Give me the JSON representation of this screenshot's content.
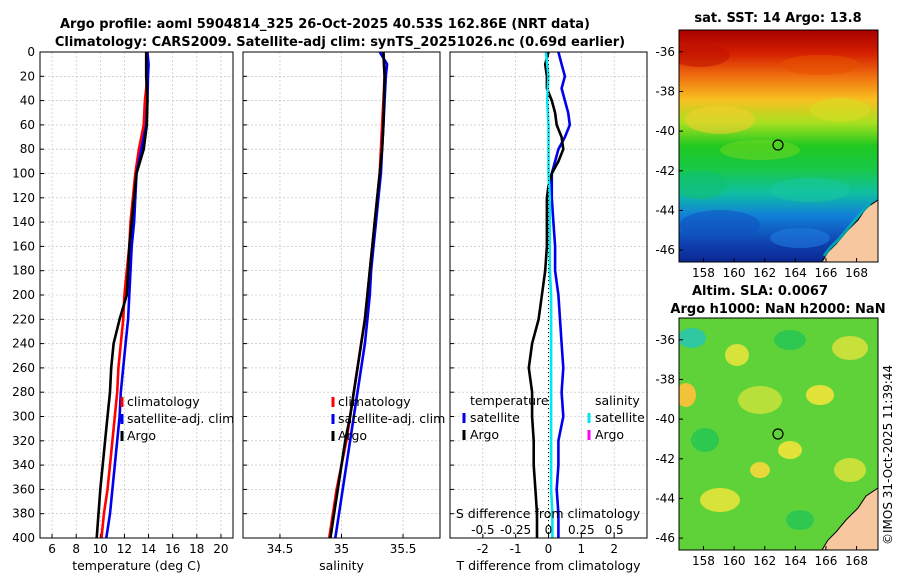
{
  "title": {
    "line1": "Argo profile: aoml 5904814_325 26-Oct-2025 40.53S 162.86E (NRT data)",
    "line2": "Climatology: CARS2009. Satellite-adj clim: synTS_20251026.nc (0.69d earlier)"
  },
  "watermark": "©IMOS 31-Oct-2025 11:39:44",
  "colors": {
    "climatology": "#ff0000",
    "satellite": "#0000ee",
    "argo": "#000000",
    "sal_satellite": "#00e5ee",
    "sal_argo": "#ff00ff",
    "land": "#f7c79f",
    "grid": "#bbbbbb"
  },
  "chart_data": [
    {
      "id": "temperature",
      "type": "line",
      "xlabel": "temperature (deg C)",
      "ylabel": "",
      "xlim": [
        5,
        21
      ],
      "ylim": [
        400,
        0
      ],
      "xticks": [
        6,
        8,
        10,
        12,
        14,
        16,
        18,
        20
      ],
      "yticks": [
        0,
        20,
        40,
        60,
        80,
        100,
        120,
        140,
        160,
        180,
        200,
        220,
        240,
        260,
        280,
        300,
        320,
        340,
        360,
        380,
        400
      ],
      "grid": true,
      "legend": {
        "placement": "lower-right",
        "entries": [
          "climatology",
          "satellite-adj. clim",
          "Argo"
        ]
      },
      "series": [
        {
          "name": "climatology",
          "color_key": "climatology",
          "points": [
            [
              13.9,
              0
            ],
            [
              13.9,
              10
            ],
            [
              13.9,
              20
            ],
            [
              13.8,
              30
            ],
            [
              13.7,
              40
            ],
            [
              13.6,
              60
            ],
            [
              13.2,
              80
            ],
            [
              12.9,
              100
            ],
            [
              12.7,
              120
            ],
            [
              12.5,
              140
            ],
            [
              12.4,
              160
            ],
            [
              12.2,
              180
            ],
            [
              12.0,
              200
            ],
            [
              11.9,
              220
            ],
            [
              11.7,
              240
            ],
            [
              11.5,
              260
            ],
            [
              11.4,
              280
            ],
            [
              11.2,
              300
            ],
            [
              11.0,
              320
            ],
            [
              10.8,
              340
            ],
            [
              10.6,
              360
            ],
            [
              10.3,
              380
            ],
            [
              10.1,
              400
            ]
          ]
        },
        {
          "name": "satellite-adj. clim",
          "color_key": "satellite",
          "points": [
            [
              13.9,
              0
            ],
            [
              14.0,
              10
            ],
            [
              13.95,
              20
            ],
            [
              13.9,
              40
            ],
            [
              13.8,
              60
            ],
            [
              13.4,
              80
            ],
            [
              13.0,
              100
            ],
            [
              12.9,
              120
            ],
            [
              12.8,
              140
            ],
            [
              12.6,
              160
            ],
            [
              12.5,
              180
            ],
            [
              12.4,
              200
            ],
            [
              12.3,
              220
            ],
            [
              12.1,
              240
            ],
            [
              11.9,
              260
            ],
            [
              11.7,
              280
            ],
            [
              11.6,
              300
            ],
            [
              11.4,
              320
            ],
            [
              11.2,
              340
            ],
            [
              11.0,
              360
            ],
            [
              10.8,
              380
            ],
            [
              10.5,
              400
            ]
          ]
        },
        {
          "name": "Argo",
          "color_key": "argo",
          "points": [
            [
              13.8,
              0
            ],
            [
              13.8,
              20
            ],
            [
              13.9,
              40
            ],
            [
              13.85,
              60
            ],
            [
              13.6,
              80
            ],
            [
              13.0,
              100
            ],
            [
              12.8,
              120
            ],
            [
              12.6,
              140
            ],
            [
              12.4,
              160
            ],
            [
              12.3,
              180
            ],
            [
              12.2,
              200
            ],
            [
              11.6,
              220
            ],
            [
              11.1,
              240
            ],
            [
              10.9,
              260
            ],
            [
              10.8,
              280
            ],
            [
              10.6,
              300
            ],
            [
              10.4,
              320
            ],
            [
              10.2,
              340
            ],
            [
              10.0,
              360
            ],
            [
              9.85,
              380
            ],
            [
              9.7,
              400
            ]
          ]
        }
      ]
    },
    {
      "id": "salinity",
      "type": "line",
      "xlabel": "salinity",
      "ylabel": "",
      "xlim": [
        34.2,
        35.8
      ],
      "ylim": [
        400,
        0
      ],
      "xticks": [
        34.5,
        35,
        35.5
      ],
      "xticklabels": [
        "34.5",
        "35",
        "35.5"
      ],
      "grid": true,
      "legend": {
        "placement": "lower-right",
        "entries": [
          "climatology",
          "satellite-adj. clim",
          "Argo"
        ]
      },
      "series": [
        {
          "name": "climatology",
          "color_key": "climatology",
          "points": [
            [
              35.34,
              0
            ],
            [
              35.35,
              20
            ],
            [
              35.34,
              40
            ],
            [
              35.33,
              60
            ],
            [
              35.32,
              80
            ],
            [
              35.31,
              100
            ],
            [
              35.29,
              120
            ],
            [
              35.27,
              140
            ],
            [
              35.25,
              160
            ],
            [
              35.23,
              180
            ],
            [
              35.21,
              200
            ],
            [
              35.19,
              220
            ],
            [
              35.16,
              240
            ],
            [
              35.13,
              260
            ],
            [
              35.1,
              280
            ],
            [
              35.07,
              300
            ],
            [
              35.04,
              320
            ],
            [
              35.0,
              340
            ],
            [
              34.96,
              360
            ],
            [
              34.93,
              380
            ],
            [
              34.9,
              400
            ]
          ]
        },
        {
          "name": "satellite-adj. clim",
          "color_key": "satellite",
          "points": [
            [
              35.31,
              0
            ],
            [
              35.37,
              10
            ],
            [
              35.36,
              20
            ],
            [
              35.35,
              40
            ],
            [
              35.34,
              60
            ],
            [
              35.33,
              80
            ],
            [
              35.32,
              100
            ],
            [
              35.3,
              120
            ],
            [
              35.28,
              140
            ],
            [
              35.26,
              160
            ],
            [
              35.24,
              180
            ],
            [
              35.23,
              200
            ],
            [
              35.21,
              220
            ],
            [
              35.19,
              240
            ],
            [
              35.16,
              260
            ],
            [
              35.13,
              280
            ],
            [
              35.1,
              300
            ],
            [
              35.07,
              320
            ],
            [
              35.04,
              340
            ],
            [
              35.01,
              360
            ],
            [
              34.98,
              380
            ],
            [
              34.95,
              400
            ]
          ]
        },
        {
          "name": "Argo",
          "color_key": "argo",
          "points": [
            [
              35.34,
              0
            ],
            [
              35.35,
              20
            ],
            [
              35.345,
              40
            ],
            [
              35.34,
              60
            ],
            [
              35.33,
              80
            ],
            [
              35.31,
              100
            ],
            [
              35.29,
              120
            ],
            [
              35.27,
              140
            ],
            [
              35.25,
              160
            ],
            [
              35.23,
              180
            ],
            [
              35.21,
              200
            ],
            [
              35.19,
              220
            ],
            [
              35.16,
              240
            ],
            [
              35.13,
              260
            ],
            [
              35.1,
              280
            ],
            [
              35.07,
              300
            ],
            [
              35.03,
              320
            ],
            [
              35.0,
              340
            ],
            [
              34.97,
              360
            ],
            [
              34.94,
              380
            ],
            [
              34.91,
              400
            ]
          ]
        }
      ]
    },
    {
      "id": "difference",
      "type": "line",
      "xlabel": "T difference from climatology",
      "top_axis_label": "S difference from climatology",
      "xlim": [
        -3,
        3
      ],
      "ylim": [
        400,
        0
      ],
      "xticks": [
        -2,
        -1,
        0,
        1,
        2
      ],
      "top_xlim": [
        -0.75,
        0.75
      ],
      "top_xticks": [
        -0.5,
        -0.25,
        0,
        0.25,
        0.5
      ],
      "top_xticklabels": [
        "-0.5",
        "-0.25",
        "0",
        "0.25",
        "0.5"
      ],
      "grid": true,
      "legend_temperature": {
        "title": "temperature",
        "placement": "lower-left",
        "entries": [
          "satellite",
          "Argo"
        ]
      },
      "legend_salinity": {
        "title": "salinity",
        "placement": "lower-right",
        "entries": [
          "satellite",
          "Argo"
        ]
      },
      "series": [
        {
          "name": "T satellite",
          "color_key": "satellite",
          "points": [
            [
              0.3,
              0
            ],
            [
              0.4,
              10
            ],
            [
              0.5,
              20
            ],
            [
              0.4,
              30
            ],
            [
              0.5,
              40
            ],
            [
              0.6,
              50
            ],
            [
              0.65,
              60
            ],
            [
              0.5,
              70
            ],
            [
              0.3,
              80
            ],
            [
              0.2,
              90
            ],
            [
              0.1,
              100
            ],
            [
              0.1,
              120
            ],
            [
              0.15,
              140
            ],
            [
              0.2,
              160
            ],
            [
              0.2,
              180
            ],
            [
              0.3,
              200
            ],
            [
              0.35,
              220
            ],
            [
              0.4,
              240
            ],
            [
              0.45,
              260
            ],
            [
              0.4,
              280
            ],
            [
              0.45,
              300
            ],
            [
              0.3,
              320
            ],
            [
              0.3,
              340
            ],
            [
              0.25,
              360
            ],
            [
              0.3,
              380
            ],
            [
              0.3,
              400
            ]
          ]
        },
        {
          "name": "T Argo",
          "color_key": "argo",
          "points": [
            [
              0.0,
              0
            ],
            [
              -0.1,
              10
            ],
            [
              -0.05,
              20
            ],
            [
              -0.05,
              30
            ],
            [
              0.1,
              40
            ],
            [
              0.2,
              50
            ],
            [
              0.25,
              60
            ],
            [
              0.4,
              70
            ],
            [
              0.45,
              80
            ],
            [
              0.3,
              90
            ],
            [
              0.1,
              100
            ],
            [
              0.0,
              110
            ],
            [
              -0.05,
              120
            ],
            [
              -0.05,
              140
            ],
            [
              -0.05,
              160
            ],
            [
              -0.1,
              180
            ],
            [
              -0.2,
              200
            ],
            [
              -0.3,
              220
            ],
            [
              -0.5,
              240
            ],
            [
              -0.6,
              260
            ],
            [
              -0.5,
              280
            ],
            [
              -0.5,
              300
            ],
            [
              -0.45,
              320
            ],
            [
              -0.45,
              340
            ],
            [
              -0.4,
              360
            ],
            [
              -0.35,
              380
            ],
            [
              -0.35,
              400
            ]
          ]
        },
        {
          "name": "S satellite",
          "color_key": "sal_satellite",
          "axis": "top",
          "points": [
            [
              -0.02,
              0
            ],
            [
              0.0,
              20
            ],
            [
              -0.01,
              40
            ],
            [
              0.0,
              60
            ],
            [
              0.0,
              80
            ],
            [
              0.0,
              100
            ],
            [
              0.01,
              120
            ],
            [
              0.01,
              140
            ],
            [
              0.01,
              160
            ],
            [
              0.01,
              180
            ],
            [
              0.02,
              200
            ],
            [
              0.02,
              220
            ],
            [
              0.02,
              240
            ],
            [
              0.02,
              260
            ],
            [
              0.02,
              280
            ],
            [
              0.02,
              300
            ],
            [
              0.02,
              320
            ],
            [
              0.02,
              340
            ],
            [
              0.02,
              360
            ],
            [
              0.03,
              380
            ],
            [
              0.03,
              400
            ]
          ]
        },
        {
          "name": "S Argo",
          "color_key": "sal_argo",
          "axis": "top",
          "points": []
        }
      ]
    },
    {
      "id": "sst_map",
      "type": "heatmap",
      "title": "sat. SST: 14 Argo: 13.8",
      "xticks": [
        158,
        160,
        162,
        164,
        166,
        168
      ],
      "yticks": [
        -36,
        -38,
        -40,
        -42,
        -44,
        -46
      ],
      "xlim": [
        156.4,
        169.4
      ],
      "ylim": [
        -46.6,
        -34.9
      ],
      "marker": {
        "lon": 162.86,
        "lat": -40.53
      }
    },
    {
      "id": "sla_map",
      "type": "heatmap",
      "title_line1": "Altim. SLA: 0.0067",
      "title_line2": "Argo h1000: NaN h2000: NaN",
      "xticks": [
        158,
        160,
        162,
        164,
        166,
        168
      ],
      "yticks": [
        -36,
        -38,
        -40,
        -42,
        -44,
        -46
      ],
      "xlim": [
        156.4,
        169.4
      ],
      "ylim": [
        -46.6,
        -34.9
      ],
      "marker": {
        "lon": 162.86,
        "lat": -40.53
      }
    }
  ]
}
